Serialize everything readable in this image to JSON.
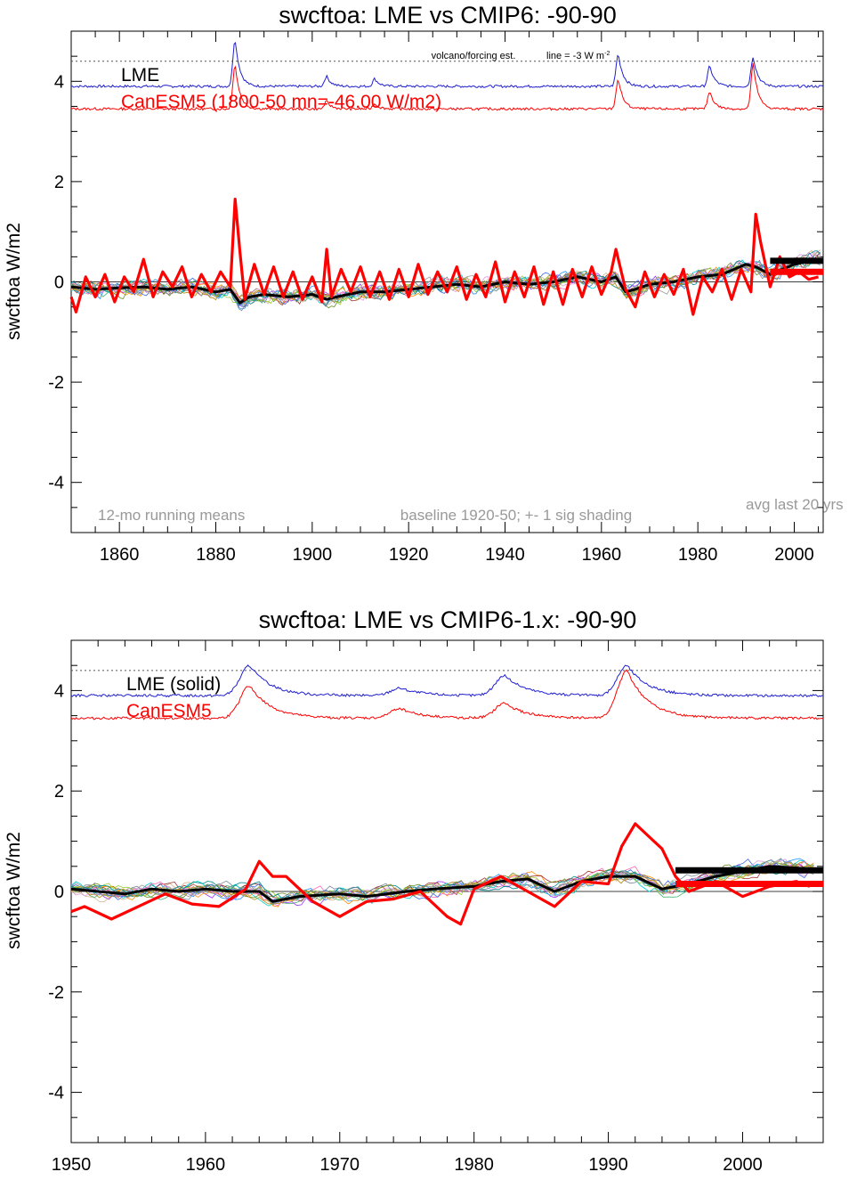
{
  "chart_data": [
    {
      "type": "line",
      "title": "swcftoa: LME vs CMIP6: -90-90",
      "ylabel": "swcftoa W/m2",
      "xlabel": "",
      "xlim": [
        1850,
        2006
      ],
      "ylim": [
        -5,
        5
      ],
      "x_ticks": [
        1860,
        1880,
        1900,
        1920,
        1940,
        1960,
        1980,
        2000
      ],
      "x_tick_labels": [
        "1860",
        "1880",
        "1900",
        "1920",
        "1940",
        "1960",
        "1980",
        "2000"
      ],
      "y_ticks": [
        -4,
        -2,
        0,
        2,
        4
      ],
      "y_tick_labels": [
        "-4",
        "-2",
        "0",
        "2",
        "4"
      ],
      "y_minor_step": 0.5,
      "x_minor_step": 5,
      "legend": [
        {
          "label": "LME",
          "color": "#000000"
        },
        {
          "label": "CanESM5 (1800-50 mn=-46.00 W/m2)",
          "color": "#ff0000"
        }
      ],
      "annotations": {
        "volcano": "volcano/forcing est.",
        "line_note": "line = -3 W m",
        "line_note_sup": "-2",
        "running": "12-mo running means",
        "baseline": "baseline 1920-50; +- 1 sig shading",
        "avg": "avg last 20 yrs"
      },
      "reference_line_y": 4.4,
      "forcing_baselines": {
        "lme": 3.9,
        "canesm5": 3.45
      },
      "volcano_peaks": [
        {
          "year": 1884,
          "lme": 4.85,
          "canesm5": 4.35
        },
        {
          "year": 1903,
          "lme": 4.1,
          "canesm5": 3.6
        },
        {
          "year": 1913,
          "lme": 4.05,
          "canesm5": 3.55
        },
        {
          "year": 1963.5,
          "lme": 4.55,
          "canesm5": 4.05
        },
        {
          "year": 1982.5,
          "lme": 4.3,
          "canesm5": 3.8
        },
        {
          "year": 1991.5,
          "lme": 4.5,
          "canesm5": 4.35
        }
      ],
      "series": [
        {
          "name": "LME",
          "color": "#000000",
          "x": [
            1850,
            1855,
            1860,
            1865,
            1870,
            1875,
            1880,
            1883,
            1885,
            1887,
            1890,
            1895,
            1900,
            1903,
            1905,
            1910,
            1915,
            1920,
            1925,
            1930,
            1935,
            1940,
            1945,
            1950,
            1955,
            1960,
            1963,
            1965,
            1967,
            1970,
            1975,
            1980,
            1985,
            1990,
            1992,
            1995,
            2000,
            2005
          ],
          "y": [
            -0.1,
            -0.15,
            -0.12,
            -0.1,
            -0.15,
            -0.1,
            -0.2,
            -0.15,
            -0.42,
            -0.3,
            -0.25,
            -0.3,
            -0.25,
            -0.35,
            -0.3,
            -0.2,
            -0.2,
            -0.15,
            -0.1,
            -0.05,
            -0.1,
            0.0,
            -0.05,
            0.0,
            0.1,
            0.0,
            0.1,
            -0.2,
            -0.15,
            -0.05,
            0.0,
            0.1,
            0.15,
            0.35,
            0.3,
            0.15,
            0.35,
            0.45
          ]
        },
        {
          "name": "CanESM5",
          "color": "#ff0000",
          "x": [
            1850,
            1851,
            1853,
            1855,
            1857,
            1859,
            1861,
            1863,
            1865,
            1867,
            1869,
            1871,
            1873,
            1875,
            1877,
            1879,
            1881,
            1883,
            1884,
            1885,
            1886,
            1888,
            1890,
            1892,
            1894,
            1896,
            1898,
            1900,
            1902,
            1903,
            1904,
            1906,
            1908,
            1910,
            1912,
            1914,
            1916,
            1918,
            1920,
            1922,
            1924,
            1926,
            1928,
            1930,
            1932,
            1934,
            1936,
            1938,
            1940,
            1942,
            1944,
            1946,
            1948,
            1950,
            1952,
            1954,
            1956,
            1958,
            1960,
            1962,
            1963,
            1965,
            1967,
            1969,
            1971,
            1973,
            1975,
            1977,
            1979,
            1981,
            1983,
            1985,
            1987,
            1989,
            1991,
            1992,
            1993,
            1995,
            1997,
            1999,
            2001,
            2003,
            2005
          ],
          "y": [
            -0.3,
            -0.6,
            0.1,
            -0.3,
            0.15,
            -0.4,
            0.1,
            -0.2,
            0.45,
            -0.3,
            0.2,
            -0.1,
            0.3,
            -0.3,
            0.15,
            -0.2,
            0.2,
            -0.1,
            1.65,
            0.6,
            -0.35,
            0.35,
            -0.25,
            0.3,
            -0.3,
            0.2,
            -0.35,
            0.1,
            -0.4,
            0.65,
            -0.3,
            0.25,
            -0.2,
            0.3,
            -0.3,
            0.2,
            -0.35,
            0.25,
            -0.3,
            0.35,
            -0.25,
            0.2,
            -0.2,
            0.3,
            -0.35,
            0.15,
            -0.3,
            0.4,
            -0.4,
            0.2,
            -0.3,
            0.3,
            -0.45,
            0.2,
            -0.45,
            0.25,
            -0.3,
            0.3,
            -0.25,
            0.2,
            0.65,
            -0.15,
            -0.5,
            0.2,
            -0.3,
            0.15,
            -0.25,
            0.25,
            -0.65,
            0.1,
            -0.2,
            0.25,
            -0.35,
            0.25,
            -0.2,
            1.35,
            0.8,
            -0.1,
            0.5,
            0.1,
            0.2,
            0.05,
            0.1
          ]
        }
      ],
      "avg_last_20": {
        "x_start": 1995,
        "x_end": 2006,
        "lme": 0.42,
        "canesm5": 0.2
      },
      "ensemble_count": 16
    },
    {
      "type": "line",
      "title": "swcftoa: LME vs CMIP6-1.x: -90-90",
      "ylabel": "swcftoa W/m2",
      "xlabel": "",
      "xlim": [
        1950,
        2006
      ],
      "ylim": [
        -5,
        5
      ],
      "x_ticks": [
        1950,
        1960,
        1970,
        1980,
        1990,
        2000
      ],
      "x_tick_labels": [
        "1950",
        "1960",
        "1970",
        "1980",
        "1990",
        "2000"
      ],
      "y_ticks": [
        -4,
        -2,
        0,
        2,
        4
      ],
      "y_tick_labels": [
        "-4",
        "-2",
        "0",
        "2",
        "4"
      ],
      "y_minor_step": 0.5,
      "x_minor_step": 2,
      "legend": [
        {
          "label": "LME (solid)",
          "color": "#000000"
        },
        {
          "label": "CanESM5",
          "color": "#ff0000"
        }
      ],
      "reference_line_y": 4.4,
      "forcing_baselines": {
        "lme": 3.9,
        "canesm5": 3.45
      },
      "volcano_peaks": [
        {
          "year": 1963.3,
          "lme": 4.5,
          "canesm5": 4.1
        },
        {
          "year": 1974.5,
          "lme": 4.05,
          "canesm5": 3.65
        },
        {
          "year": 1982.3,
          "lme": 4.3,
          "canesm5": 3.75
        },
        {
          "year": 1991.4,
          "lme": 4.5,
          "canesm5": 4.4
        }
      ],
      "series": [
        {
          "name": "LME (solid)",
          "color": "#000000",
          "x": [
            1950,
            1952,
            1954,
            1956,
            1958,
            1960,
            1962,
            1964,
            1965,
            1967,
            1970,
            1972,
            1975,
            1977,
            1980,
            1982,
            1984,
            1986,
            1988,
            1990,
            1992,
            1994,
            1996,
            1998,
            2000,
            2002,
            2005
          ],
          "y": [
            0.05,
            0.0,
            -0.05,
            0.05,
            0.0,
            0.05,
            0.0,
            0.0,
            -0.2,
            -0.1,
            -0.05,
            -0.1,
            0.0,
            0.05,
            0.1,
            0.2,
            0.25,
            0.0,
            0.2,
            0.3,
            0.3,
            0.05,
            0.15,
            0.3,
            0.4,
            0.5,
            0.45
          ]
        },
        {
          "name": "CanESM5",
          "color": "#ff0000",
          "x": [
            1950,
            1951,
            1953,
            1955,
            1957,
            1959,
            1961,
            1963,
            1964,
            1965,
            1966,
            1968,
            1970,
            1972,
            1974,
            1976,
            1978,
            1979,
            1980,
            1982,
            1984,
            1986,
            1988,
            1990,
            1991,
            1992,
            1993,
            1994,
            1995,
            1996,
            1998,
            2000,
            2002,
            2004,
            2005
          ],
          "y": [
            -0.4,
            -0.3,
            -0.55,
            -0.3,
            -0.05,
            -0.25,
            -0.3,
            0.05,
            0.6,
            0.3,
            0.3,
            -0.2,
            -0.5,
            -0.2,
            -0.15,
            0.0,
            -0.5,
            -0.65,
            0.05,
            0.3,
            0.0,
            -0.3,
            0.2,
            0.15,
            0.9,
            1.35,
            1.1,
            0.85,
            0.3,
            0.0,
            0.2,
            -0.1,
            0.1,
            0.2,
            0.1
          ]
        }
      ],
      "avg_last_20": {
        "x_start": 1995,
        "x_end": 2006,
        "lme": 0.42,
        "canesm5": 0.15
      },
      "ensemble_count": 16
    }
  ],
  "ensemble_colors": [
    "#3cb371",
    "#9b30ff",
    "#1e90ff",
    "#ff8c00",
    "#a52a2a",
    "#00ced1",
    "#ff69b4",
    "#999999",
    "#6b8e23",
    "#4169e1",
    "#d2b48c",
    "#9acd32",
    "#dda0dd",
    "#008b8b",
    "#b8860b",
    "#778899"
  ],
  "colors": {
    "lme_forcing": "#1f1fcf",
    "canesm5": "#ff0000",
    "lme": "#000000",
    "gray_text": "#999999"
  }
}
